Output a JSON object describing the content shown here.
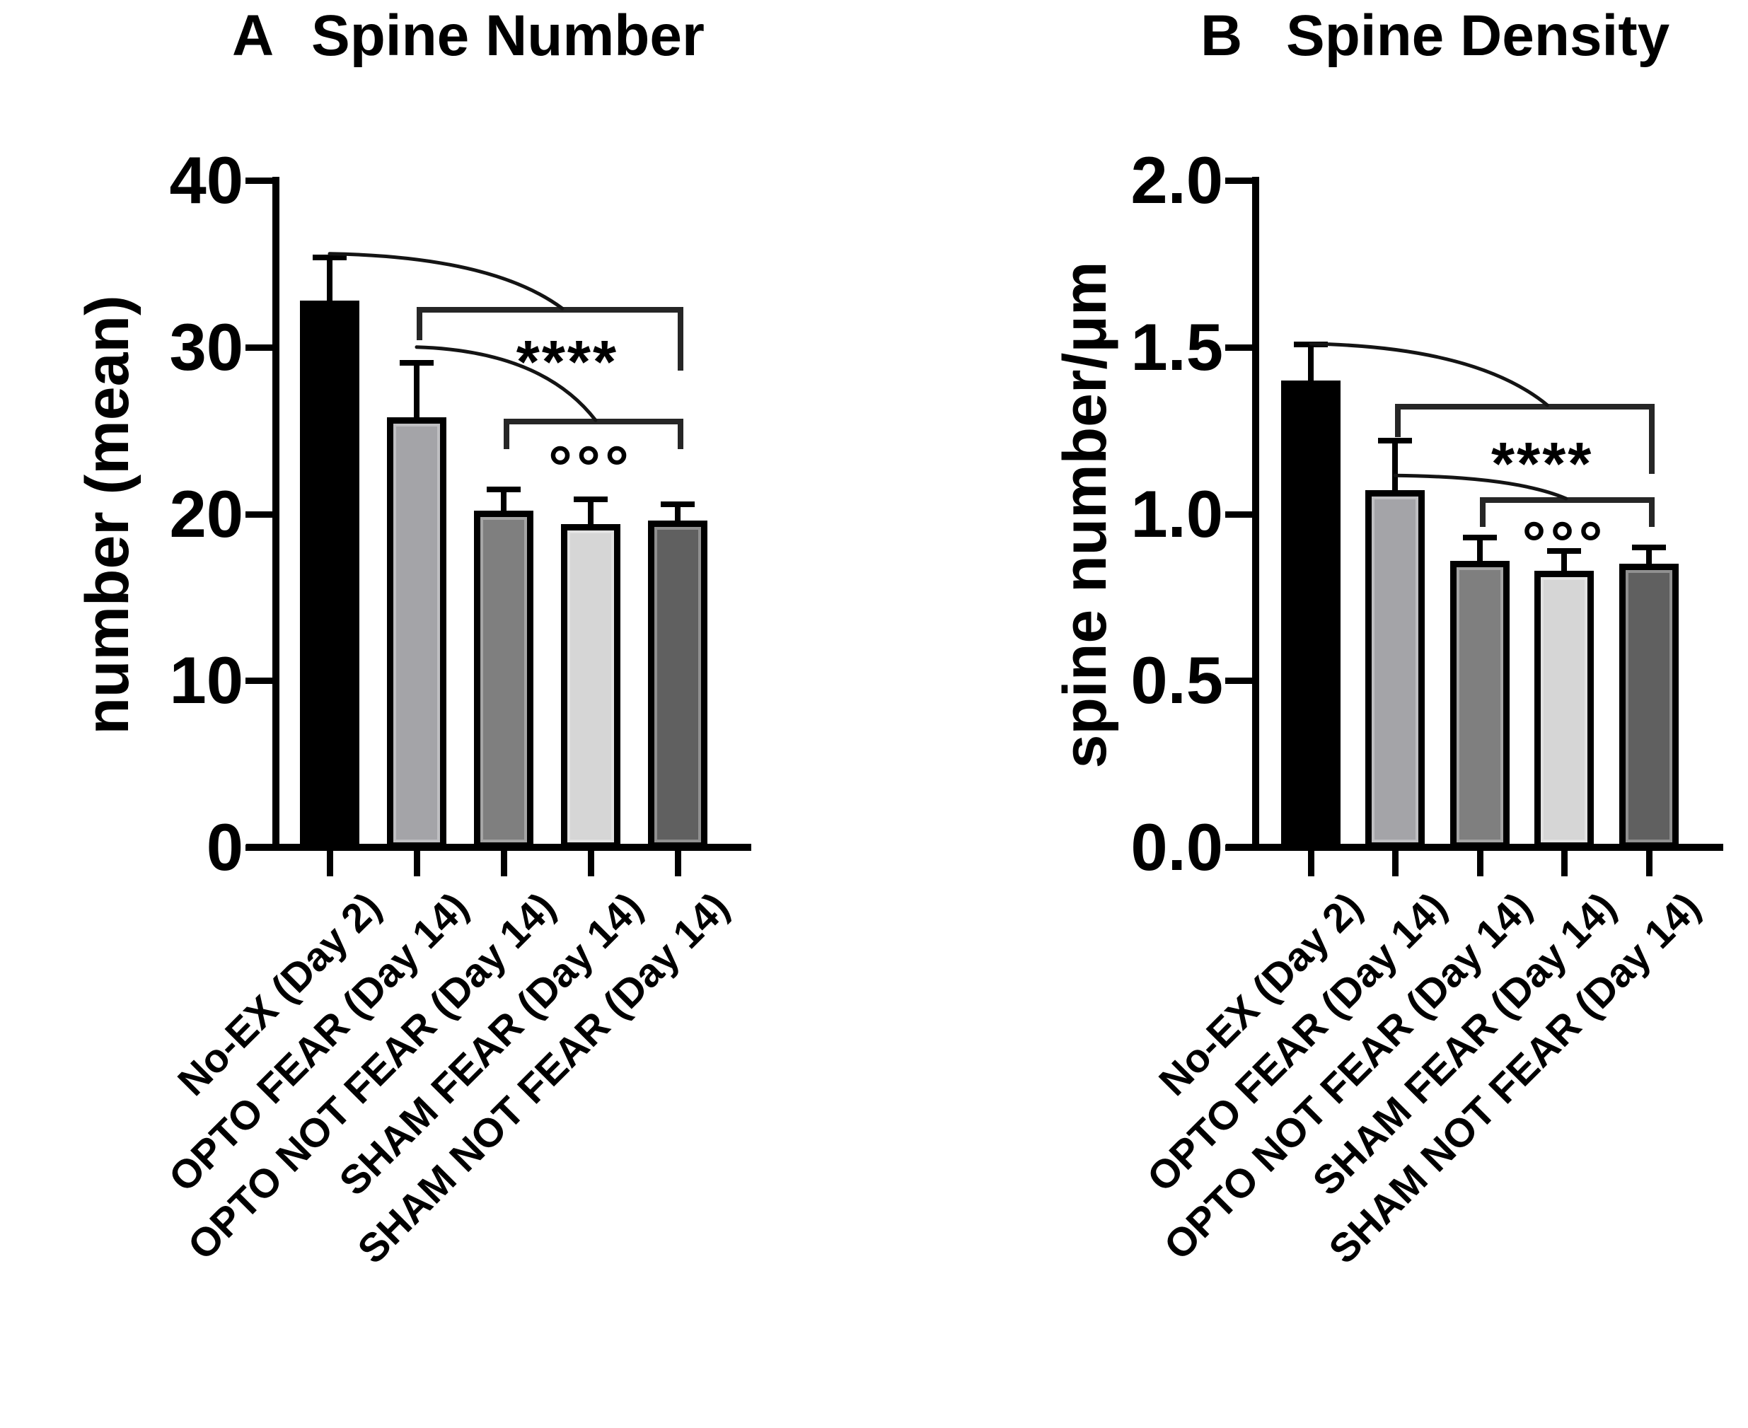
{
  "figure": {
    "background_color": "#ffffff",
    "text_color": "#000000",
    "bracket_color": "#262626",
    "significance_star_symbol": "****",
    "significance_circle_symbol": "°°°"
  },
  "chart_data": [
    {
      "type": "bar",
      "panel_label": "A",
      "title": "Spine Number",
      "ylabel": "number (mean)",
      "xlabel": "",
      "ylim": [
        0,
        40
      ],
      "yticks": [
        "0",
        "10",
        "20",
        "30",
        "40"
      ],
      "grid": false,
      "legend": "none",
      "categories": [
        "No-EX (Day 2)",
        "OPTO FEAR (Day 14)",
        "OPTO NOT FEAR (Day 14)",
        "SHAM FEAR (Day 14)",
        "SHAM NOT FEAR (Day 14)"
      ],
      "values": [
        32.8,
        25.8,
        20.2,
        19.4,
        19.6
      ],
      "errors_plus": [
        2.4,
        3.1,
        1.1,
        1.3,
        0.8
      ],
      "bar_colors": [
        "#000000",
        "#a4a4a8",
        "#7f7f7f",
        "#d6d6d6",
        "#606060"
      ],
      "annotations": [
        {
          "symbol": "****",
          "span_bars": [
            1,
            4
          ],
          "bracket_y": 32.4,
          "tick_left_to": 30.4,
          "tick_right_to": 28.6,
          "symbol_y": 29.9,
          "symbol_x_frac": 0.577,
          "curve_from_bar": 0,
          "curve_from_y": 35.6,
          "curve_end_frac": 0.558
        },
        {
          "symbol": "°°°",
          "span_bars": [
            2,
            4
          ],
          "bracket_y": 25.7,
          "tick_left_to": 23.9,
          "tick_right_to": 23.9,
          "symbol_y": 23.9,
          "symbol_x_frac": 0.5,
          "curve_from_bar": 1,
          "curve_from_y": 30.0,
          "curve_end_frac": 0.528
        }
      ]
    },
    {
      "type": "bar",
      "panel_label": "B",
      "title": "Spine Density",
      "ylabel": "spine number/μm",
      "xlabel": "",
      "ylim": [
        0,
        2
      ],
      "yticks": [
        "0.0",
        "0.5",
        "1.0",
        "1.5",
        "2.0"
      ],
      "grid": false,
      "legend": "none",
      "categories": [
        "No-EX (Day 2)",
        "OPTO FEAR (Day 14)",
        "OPTO NOT FEAR (Day 14)",
        "SHAM FEAR (Day 14)",
        "SHAM NOT FEAR (Day 14)"
      ],
      "values": [
        1.4,
        1.07,
        0.86,
        0.83,
        0.85
      ],
      "errors_plus": [
        0.1,
        0.14,
        0.06,
        0.05,
        0.04
      ],
      "bar_colors": [
        "#000000",
        "#a4a4a8",
        "#7f7f7f",
        "#d6d6d6",
        "#606060"
      ],
      "annotations": [
        {
          "symbol": "****",
          "span_bars": [
            1,
            4
          ],
          "bracket_y": 1.33,
          "tick_left_to": 1.23,
          "tick_right_to": 1.12,
          "symbol_y": 1.19,
          "symbol_x_frac": 0.58,
          "curve_from_bar": 0,
          "curve_from_y": 1.51,
          "curve_end_frac": 0.6
        },
        {
          "symbol": "°°°",
          "span_bars": [
            2,
            4
          ],
          "bracket_y": 1.05,
          "tick_left_to": 0.96,
          "tick_right_to": 0.96,
          "symbol_y": 0.967,
          "symbol_x_frac": 0.5,
          "curve_from_bar": 1,
          "curve_from_y": 1.115,
          "curve_end_frac": 0.51
        }
      ]
    }
  ]
}
